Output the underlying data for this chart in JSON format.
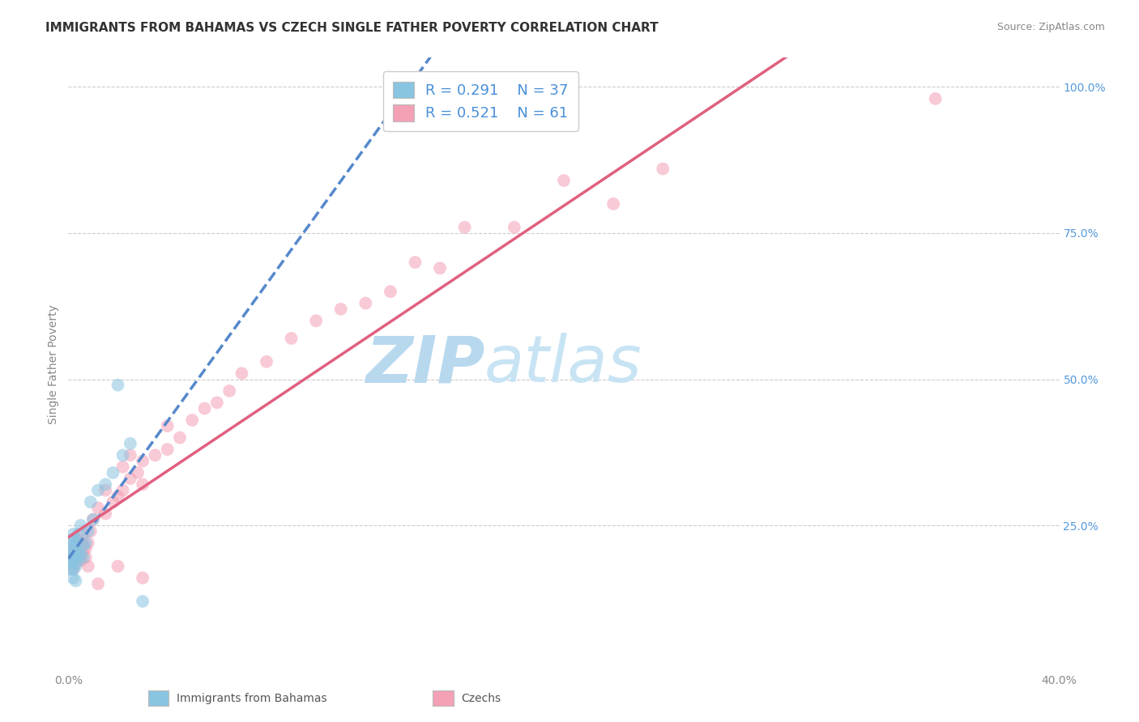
{
  "title": "IMMIGRANTS FROM BAHAMAS VS CZECH SINGLE FATHER POVERTY CORRELATION CHART",
  "source_text": "Source: ZipAtlas.com",
  "ylabel": "Single Father Poverty",
  "xlim": [
    0.0,
    0.4
  ],
  "ylim": [
    0.0,
    1.05
  ],
  "xticks": [
    0.0,
    0.1,
    0.2,
    0.3,
    0.4
  ],
  "xtick_labels": [
    "0.0%",
    "",
    "",
    "",
    "40.0%"
  ],
  "yticks": [
    0.25,
    0.5,
    0.75,
    1.0
  ],
  "ytick_labels": [
    "25.0%",
    "50.0%",
    "75.0%",
    "100.0%"
  ],
  "grid_color": "#cccccc",
  "background_color": "#ffffff",
  "watermark": "ZIPatlas",
  "watermark_color": "#cce4f5",
  "legend_R1": "R = 0.291",
  "legend_N1": "N = 37",
  "legend_R2": "R = 0.521",
  "legend_N2": "N = 61",
  "legend_label1": "Immigrants from Bahamas",
  "legend_label2": "Czechs",
  "blue_color": "#89c4e1",
  "pink_color": "#f4a0b5",
  "blue_line_color": "#5588cc",
  "pink_line_color": "#e06080",
  "title_color": "#333333",
  "source_color": "#888888",
  "tick_color_x": "#888888",
  "tick_color_y": "#5599dd",
  "ylabel_color": "#888888",
  "legend_text_color": "#4a90d9",
  "title_fontsize": 11,
  "axis_fontsize": 10,
  "tick_fontsize": 10,
  "source_fontsize": 9,
  "legend_fontsize": 13,
  "blue_scatter": [
    [
      0.001,
      0.175
    ],
    [
      0.001,
      0.185
    ],
    [
      0.001,
      0.195
    ],
    [
      0.001,
      0.205
    ],
    [
      0.001,
      0.215
    ],
    [
      0.001,
      0.225
    ],
    [
      0.002,
      0.16
    ],
    [
      0.002,
      0.175
    ],
    [
      0.002,
      0.185
    ],
    [
      0.002,
      0.195
    ],
    [
      0.002,
      0.21
    ],
    [
      0.002,
      0.225
    ],
    [
      0.002,
      0.235
    ],
    [
      0.003,
      0.18
    ],
    [
      0.003,
      0.195
    ],
    [
      0.003,
      0.2
    ],
    [
      0.003,
      0.215
    ],
    [
      0.003,
      0.225
    ],
    [
      0.004,
      0.19
    ],
    [
      0.004,
      0.205
    ],
    [
      0.004,
      0.235
    ],
    [
      0.005,
      0.2
    ],
    [
      0.005,
      0.25
    ],
    [
      0.006,
      0.195
    ],
    [
      0.006,
      0.215
    ],
    [
      0.007,
      0.22
    ],
    [
      0.008,
      0.24
    ],
    [
      0.009,
      0.29
    ],
    [
      0.01,
      0.26
    ],
    [
      0.012,
      0.31
    ],
    [
      0.015,
      0.32
    ],
    [
      0.018,
      0.34
    ],
    [
      0.02,
      0.49
    ],
    [
      0.022,
      0.37
    ],
    [
      0.025,
      0.39
    ],
    [
      0.03,
      0.12
    ],
    [
      0.003,
      0.155
    ]
  ],
  "pink_scatter": [
    [
      0.001,
      0.195
    ],
    [
      0.001,
      0.21
    ],
    [
      0.002,
      0.175
    ],
    [
      0.002,
      0.19
    ],
    [
      0.002,
      0.205
    ],
    [
      0.003,
      0.185
    ],
    [
      0.003,
      0.2
    ],
    [
      0.003,
      0.215
    ],
    [
      0.004,
      0.195
    ],
    [
      0.004,
      0.21
    ],
    [
      0.004,
      0.225
    ],
    [
      0.005,
      0.19
    ],
    [
      0.005,
      0.2
    ],
    [
      0.005,
      0.215
    ],
    [
      0.006,
      0.205
    ],
    [
      0.006,
      0.22
    ],
    [
      0.006,
      0.235
    ],
    [
      0.007,
      0.195
    ],
    [
      0.007,
      0.21
    ],
    [
      0.008,
      0.22
    ],
    [
      0.009,
      0.24
    ],
    [
      0.01,
      0.26
    ],
    [
      0.012,
      0.28
    ],
    [
      0.015,
      0.27
    ],
    [
      0.015,
      0.31
    ],
    [
      0.018,
      0.29
    ],
    [
      0.02,
      0.3
    ],
    [
      0.022,
      0.31
    ],
    [
      0.022,
      0.35
    ],
    [
      0.025,
      0.33
    ],
    [
      0.025,
      0.37
    ],
    [
      0.028,
      0.34
    ],
    [
      0.03,
      0.32
    ],
    [
      0.03,
      0.36
    ],
    [
      0.035,
      0.37
    ],
    [
      0.04,
      0.38
    ],
    [
      0.04,
      0.42
    ],
    [
      0.045,
      0.4
    ],
    [
      0.05,
      0.43
    ],
    [
      0.055,
      0.45
    ],
    [
      0.06,
      0.46
    ],
    [
      0.065,
      0.48
    ],
    [
      0.07,
      0.51
    ],
    [
      0.08,
      0.53
    ],
    [
      0.09,
      0.57
    ],
    [
      0.1,
      0.6
    ],
    [
      0.11,
      0.62
    ],
    [
      0.12,
      0.63
    ],
    [
      0.13,
      0.65
    ],
    [
      0.14,
      0.7
    ],
    [
      0.15,
      0.69
    ],
    [
      0.16,
      0.76
    ],
    [
      0.18,
      0.76
    ],
    [
      0.2,
      0.84
    ],
    [
      0.22,
      0.8
    ],
    [
      0.24,
      0.86
    ],
    [
      0.008,
      0.18
    ],
    [
      0.012,
      0.15
    ],
    [
      0.02,
      0.18
    ],
    [
      0.03,
      0.16
    ],
    [
      0.35,
      0.98
    ]
  ],
  "blue_line_x": [
    0.0,
    0.4
  ],
  "blue_line_y_start": 0.18,
  "blue_line_slope": 0.6,
  "pink_line_x": [
    0.0,
    0.4
  ],
  "pink_line_y_start": 0.2,
  "pink_line_slope": 0.72
}
